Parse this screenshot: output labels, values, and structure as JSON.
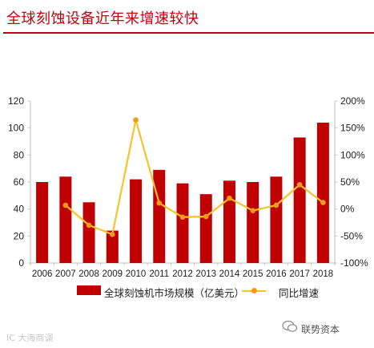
{
  "title": "全球刻蚀设备近年来增速较快",
  "colors": {
    "title": "#c0000d",
    "bar": "#c00000",
    "line": "#f7c22a",
    "marker": "#f29a1a",
    "axis_text": "#222222"
  },
  "chart_data": {
    "type": "bar",
    "categories": [
      "2006",
      "2007",
      "2008",
      "2009",
      "2010",
      "2011",
      "2012",
      "2013",
      "2014",
      "2015",
      "2016",
      "2017",
      "2018"
    ],
    "series": [
      {
        "name": "全球刻蚀机市场规模（亿美元）",
        "type": "bar",
        "axis": "left",
        "values": [
          60,
          64,
          45,
          24,
          62,
          69,
          59,
          51,
          61,
          60,
          64,
          93,
          104
        ]
      },
      {
        "name": "同比增速",
        "type": "line",
        "axis": "right",
        "values": [
          null,
          7,
          -30,
          -47,
          165,
          11,
          -15,
          -14,
          20,
          -3,
          7,
          45,
          12
        ]
      }
    ],
    "y_left": {
      "ylim": [
        0,
        120
      ],
      "ticks": [
        "0",
        "20",
        "40",
        "60",
        "80",
        "100",
        "120"
      ]
    },
    "y_right": {
      "ylim": [
        -100,
        200
      ],
      "ticks": [
        "-100%",
        "-50%",
        "0%",
        "50%",
        "100%",
        "150%",
        "200%"
      ]
    },
    "grid": false,
    "legend_position": "bottom"
  },
  "watermarks": {
    "left": "IC 大海商调",
    "right": "联势资本"
  }
}
